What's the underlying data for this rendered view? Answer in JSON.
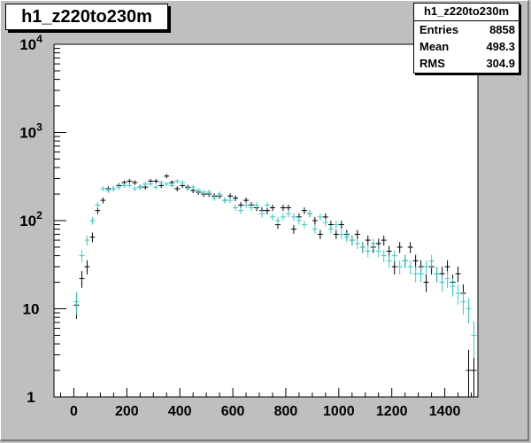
{
  "colors": {
    "frame_bg": "#bfbfbf",
    "plot_bg": "#ffffff",
    "series_black": "#000000",
    "series_cyan": "#33cccc"
  },
  "stats": {
    "name": "h1_z220to230m",
    "rows": [
      {
        "label": "Entries",
        "value": "8858"
      },
      {
        "label": "Mean",
        "value": "498.3"
      },
      {
        "label": "RMS",
        "value": "304.9"
      }
    ]
  },
  "chart_data": {
    "type": "scatter",
    "title": "h1_z220to230m",
    "xlabel": "",
    "ylabel": "",
    "xlim": [
      -75,
      1525
    ],
    "ylim": [
      1,
      10000
    ],
    "y_scale": "log",
    "grid": false,
    "x_tick_labels": [
      "0",
      "200",
      "400",
      "600",
      "800",
      "1000",
      "1200",
      "1400"
    ],
    "y_tick_labels": [
      {
        "value": 1,
        "base": "1",
        "exp": ""
      },
      {
        "value": 10,
        "base": "10",
        "exp": ""
      },
      {
        "value": 100,
        "base": "10",
        "exp": "2"
      },
      {
        "value": 1000,
        "base": "10",
        "exp": "3"
      },
      {
        "value": 10000,
        "base": "10",
        "exp": "4"
      }
    ],
    "bin_width": 20,
    "series": [
      {
        "color": "#000000",
        "x": [
          10,
          30,
          50,
          70,
          90,
          110,
          130,
          150,
          170,
          190,
          210,
          230,
          250,
          270,
          290,
          310,
          330,
          350,
          370,
          390,
          410,
          430,
          450,
          470,
          490,
          510,
          530,
          550,
          570,
          590,
          610,
          630,
          650,
          670,
          690,
          710,
          730,
          750,
          770,
          790,
          810,
          830,
          850,
          870,
          890,
          910,
          930,
          950,
          970,
          990,
          1010,
          1030,
          1050,
          1070,
          1090,
          1110,
          1130,
          1150,
          1170,
          1190,
          1210,
          1230,
          1250,
          1270,
          1290,
          1310,
          1330,
          1350,
          1370,
          1390,
          1410,
          1430,
          1450,
          1470,
          1490,
          1510
        ],
        "y": [
          11,
          22,
          30,
          65,
          130,
          170,
          230,
          230,
          250,
          270,
          280,
          270,
          240,
          240,
          280,
          280,
          250,
          320,
          270,
          230,
          250,
          240,
          220,
          210,
          200,
          200,
          190,
          190,
          170,
          190,
          180,
          150,
          170,
          150,
          140,
          130,
          130,
          140,
          90,
          140,
          140,
          80,
          110,
          130,
          120,
          100,
          70,
          110,
          90,
          70,
          90,
          70,
          60,
          70,
          50,
          60,
          50,
          55,
          60,
          45,
          30,
          50,
          35,
          50,
          35,
          30,
          20,
          30,
          25,
          25,
          30,
          20,
          25,
          15,
          2,
          2
        ]
      },
      {
        "color": "#33cccc",
        "x": [
          10,
          30,
          50,
          70,
          90,
          110,
          130,
          150,
          170,
          190,
          210,
          230,
          250,
          270,
          290,
          310,
          330,
          350,
          370,
          390,
          410,
          430,
          450,
          470,
          490,
          510,
          530,
          550,
          570,
          590,
          610,
          630,
          650,
          670,
          690,
          710,
          730,
          750,
          770,
          790,
          810,
          830,
          850,
          870,
          890,
          910,
          930,
          950,
          970,
          990,
          1010,
          1030,
          1050,
          1070,
          1090,
          1110,
          1130,
          1150,
          1170,
          1190,
          1210,
          1230,
          1250,
          1270,
          1290,
          1310,
          1330,
          1350,
          1370,
          1390,
          1410,
          1430,
          1450,
          1470,
          1490,
          1510
        ],
        "y": [
          12,
          40,
          60,
          100,
          150,
          230,
          220,
          230,
          240,
          250,
          250,
          230,
          240,
          260,
          260,
          240,
          270,
          260,
          250,
          280,
          270,
          230,
          240,
          220,
          210,
          210,
          180,
          200,
          170,
          170,
          140,
          130,
          150,
          140,
          150,
          120,
          150,
          110,
          100,
          110,
          120,
          110,
          100,
          90,
          120,
          80,
          110,
          95,
          80,
          90,
          70,
          65,
          60,
          55,
          50,
          45,
          55,
          45,
          40,
          35,
          40,
          30,
          35,
          30,
          25,
          25,
          30,
          35,
          25,
          20,
          22,
          18,
          15,
          12,
          10,
          5
        ]
      }
    ]
  }
}
